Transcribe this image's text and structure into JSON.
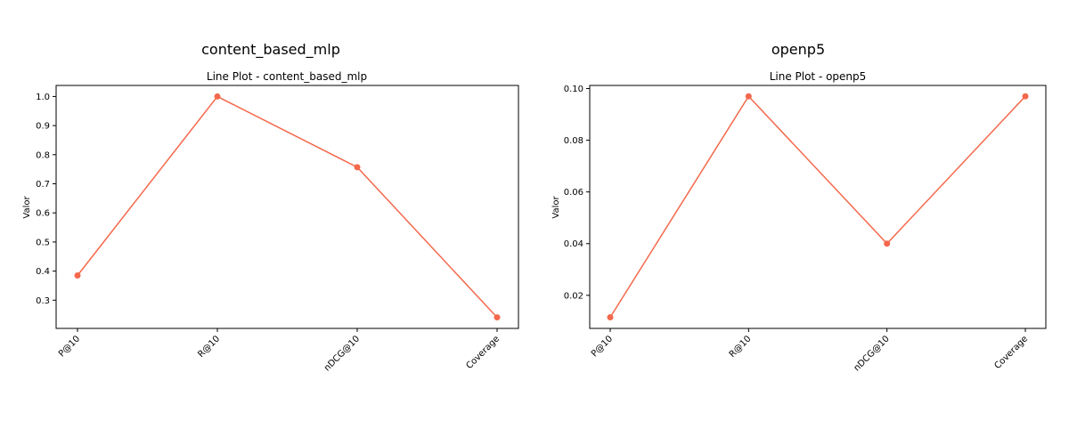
{
  "figure": {
    "panels": [
      {
        "suptitle": "content_based_mlp"
      },
      {
        "suptitle": "openp5"
      }
    ]
  },
  "colors": {
    "line": "#f4694c",
    "axes": "#000000",
    "background": "#ffffff"
  },
  "chart_data": [
    {
      "type": "line",
      "title": "Line Plot - content_based_mlp",
      "xlabel": "",
      "ylabel": "Valor",
      "categories": [
        "P@10",
        "R@10",
        "nDCG@10",
        "Coverage"
      ],
      "series": [
        {
          "values": [
            0.385,
            1.0,
            0.757,
            0.241
          ]
        }
      ],
      "ylim": [
        0.203,
        1.038
      ],
      "yticks": [
        "0.3",
        "0.4",
        "0.5",
        "0.6",
        "0.7",
        "0.8",
        "0.9",
        "1.0"
      ],
      "grid": false,
      "markers": true
    },
    {
      "type": "line",
      "title": "Line Plot - openp5",
      "xlabel": "",
      "ylabel": "Valor",
      "categories": [
        "P@10",
        "R@10",
        "nDCG@10",
        "Coverage"
      ],
      "series": [
        {
          "values": [
            0.0115,
            0.097,
            0.04,
            0.097
          ]
        }
      ],
      "ylim": [
        0.0072,
        0.1012
      ],
      "yticks": [
        "0.02",
        "0.04",
        "0.06",
        "0.08",
        "0.10"
      ],
      "grid": false,
      "markers": true
    }
  ]
}
